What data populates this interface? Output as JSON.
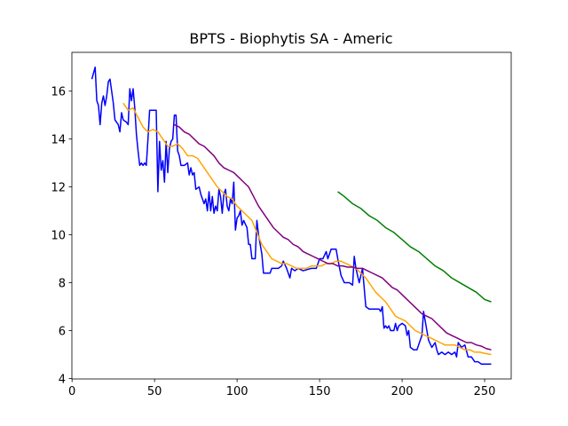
{
  "chart_data": {
    "type": "line",
    "title": "BPTS - Biophytis SA - Americ",
    "xlim": [
      -0.1,
      266.1
    ],
    "ylim": [
      3.98,
      17.62
    ],
    "xticks": [
      0,
      50,
      100,
      150,
      200,
      250
    ],
    "yticks": [
      4,
      6,
      8,
      10,
      12,
      14,
      16
    ],
    "series": [
      {
        "color": "blue",
        "x": [
          12,
          14,
          15,
          16,
          17,
          18,
          19,
          20,
          21,
          22,
          23,
          24,
          25,
          26,
          28,
          29,
          30,
          31,
          33,
          34,
          35,
          36,
          37,
          38,
          39,
          40,
          41,
          42,
          43,
          44,
          45,
          46,
          47,
          50,
          51,
          52,
          53,
          54,
          55,
          56,
          57,
          58,
          59,
          60,
          61,
          62,
          63,
          64,
          65,
          66,
          68,
          70,
          71,
          72,
          73,
          74,
          75,
          77,
          78,
          80,
          81,
          82,
          83,
          84,
          85,
          86,
          87,
          88,
          89,
          90,
          91,
          92,
          93,
          94,
          95,
          96,
          97,
          98,
          99,
          100,
          101,
          102,
          103,
          104,
          106,
          107,
          108,
          109,
          111,
          112,
          113,
          114,
          115,
          116,
          118,
          120,
          121,
          125,
          127,
          128,
          130,
          132,
          133,
          135,
          137,
          140,
          145,
          148,
          150,
          152,
          154,
          155,
          157,
          160,
          161,
          163,
          165,
          168,
          170,
          171,
          172,
          174,
          176,
          178,
          180,
          186,
          187,
          188,
          189,
          190,
          191,
          192,
          193,
          195,
          196,
          197,
          198,
          200,
          202,
          203,
          204,
          205,
          207,
          209,
          210,
          211,
          212,
          213,
          214,
          215,
          216,
          218,
          220,
          221,
          222,
          224,
          226,
          228,
          230,
          232,
          233,
          234,
          236,
          238,
          240,
          242,
          244,
          246,
          248,
          252,
          254
        ],
        "values": [
          16.5,
          17.0,
          15.6,
          15.4,
          14.6,
          15.5,
          15.8,
          15.4,
          15.8,
          16.4,
          16.5,
          16.0,
          15.5,
          14.8,
          14.6,
          14.3,
          15.1,
          14.8,
          14.7,
          14.6,
          16.1,
          15.6,
          16.1,
          15.3,
          14.2,
          13.5,
          12.9,
          13.0,
          12.9,
          13.0,
          12.9,
          14.0,
          15.2,
          15.2,
          15.2,
          11.8,
          13.9,
          12.7,
          13.1,
          12.2,
          13.9,
          12.6,
          13.6,
          13.9,
          14.0,
          15.0,
          15.0,
          13.5,
          13.3,
          12.9,
          12.9,
          13.0,
          12.5,
          12.8,
          12.5,
          12.6,
          11.9,
          12.0,
          11.7,
          11.3,
          11.5,
          11.0,
          11.8,
          11.0,
          11.6,
          10.9,
          11.2,
          11.0,
          11.9,
          11.6,
          10.9,
          11.7,
          11.9,
          11.2,
          11.0,
          11.5,
          11.3,
          12.2,
          10.2,
          10.7,
          10.8,
          11.0,
          10.4,
          10.6,
          10.3,
          9.6,
          9.6,
          9.0,
          9.0,
          10.6,
          10.0,
          9.6,
          9.2,
          8.4,
          8.4,
          8.4,
          8.6,
          8.6,
          8.7,
          8.9,
          8.6,
          8.2,
          8.6,
          8.5,
          8.6,
          8.5,
          8.6,
          8.6,
          9.0,
          9.0,
          9.3,
          9.0,
          9.4,
          9.4,
          9.0,
          8.3,
          8.0,
          8.0,
          7.9,
          9.1,
          8.6,
          8.0,
          8.6,
          7.0,
          6.9,
          6.9,
          6.8,
          7.0,
          6.1,
          6.2,
          6.1,
          6.2,
          6.0,
          6.0,
          6.3,
          6.0,
          6.2,
          6.3,
          6.2,
          5.8,
          6.0,
          5.3,
          5.2,
          5.2,
          5.4,
          5.6,
          5.8,
          6.8,
          6.4,
          6.0,
          5.6,
          5.3,
          5.5,
          5.2,
          5.0,
          5.1,
          5.0,
          5.1,
          5.0,
          5.1,
          4.9,
          5.5,
          5.3,
          5.4,
          4.9,
          4.9,
          4.7,
          4.7,
          4.6,
          4.6,
          4.6
        ]
      },
      {
        "color": "orange",
        "x": [
          31,
          34,
          37,
          40,
          43,
          46,
          49,
          52,
          55,
          58,
          61,
          64,
          67,
          70,
          73,
          76,
          79,
          82,
          85,
          88,
          91,
          94,
          97,
          100,
          103,
          106,
          109,
          112,
          115,
          118,
          121,
          124,
          127,
          130,
          133,
          136,
          139,
          142,
          145,
          148,
          151,
          154,
          157,
          160,
          163,
          166,
          169,
          172,
          175,
          178,
          181,
          184,
          187,
          190,
          193,
          196,
          199,
          202,
          205,
          208,
          211,
          214,
          217,
          220,
          223,
          226,
          229,
          232,
          235,
          238,
          241,
          244,
          247,
          250,
          254
        ],
        "values": [
          15.5,
          15.2,
          15.3,
          14.9,
          14.5,
          14.3,
          14.4,
          14.3,
          14.0,
          13.7,
          13.7,
          13.8,
          13.6,
          13.3,
          13.3,
          13.2,
          12.9,
          12.6,
          12.3,
          12.0,
          11.8,
          11.6,
          11.5,
          11.2,
          11.0,
          10.8,
          10.6,
          10.1,
          9.6,
          9.3,
          9.0,
          8.9,
          8.8,
          8.8,
          8.7,
          8.6,
          8.6,
          8.6,
          8.7,
          8.7,
          8.7,
          8.8,
          8.8,
          8.9,
          8.9,
          8.8,
          8.7,
          8.6,
          8.4,
          8.2,
          7.9,
          7.6,
          7.4,
          7.2,
          6.9,
          6.6,
          6.5,
          6.4,
          6.2,
          6.0,
          5.9,
          5.8,
          5.7,
          5.6,
          5.5,
          5.4,
          5.4,
          5.4,
          5.3,
          5.2,
          5.2,
          5.1,
          5.1,
          5.05,
          5.0
        ]
      },
      {
        "color": "purple",
        "x": [
          62,
          65,
          68,
          71,
          74,
          77,
          80,
          83,
          86,
          89,
          92,
          95,
          98,
          101,
          104,
          107,
          110,
          113,
          116,
          119,
          122,
          125,
          128,
          131,
          134,
          137,
          140,
          143,
          146,
          149,
          152,
          155,
          158,
          161,
          164,
          167,
          170,
          173,
          176,
          179,
          182,
          185,
          188,
          191,
          194,
          197,
          200,
          203,
          206,
          209,
          212,
          215,
          218,
          221,
          224,
          227,
          230,
          233,
          236,
          239,
          242,
          245,
          248,
          251,
          254
        ],
        "values": [
          14.6,
          14.5,
          14.3,
          14.2,
          14.0,
          13.8,
          13.7,
          13.5,
          13.3,
          13.0,
          12.8,
          12.7,
          12.6,
          12.4,
          12.2,
          12.0,
          11.6,
          11.2,
          10.9,
          10.6,
          10.3,
          10.1,
          9.9,
          9.8,
          9.6,
          9.5,
          9.3,
          9.2,
          9.1,
          9.0,
          8.9,
          8.8,
          8.8,
          8.7,
          8.7,
          8.65,
          8.65,
          8.6,
          8.6,
          8.5,
          8.4,
          8.3,
          8.2,
          8.0,
          7.8,
          7.7,
          7.5,
          7.3,
          7.1,
          6.9,
          6.7,
          6.6,
          6.5,
          6.3,
          6.1,
          5.9,
          5.8,
          5.7,
          5.6,
          5.5,
          5.5,
          5.4,
          5.35,
          5.25,
          5.2
        ]
      },
      {
        "color": "green",
        "x": [
          161,
          165,
          170,
          175,
          180,
          185,
          190,
          195,
          200,
          205,
          210,
          215,
          220,
          225,
          230,
          235,
          240,
          245,
          250,
          254
        ],
        "values": [
          11.8,
          11.6,
          11.3,
          11.1,
          10.8,
          10.6,
          10.3,
          10.1,
          9.8,
          9.5,
          9.3,
          9.0,
          8.7,
          8.5,
          8.2,
          8.0,
          7.8,
          7.6,
          7.3,
          7.2
        ]
      }
    ]
  }
}
